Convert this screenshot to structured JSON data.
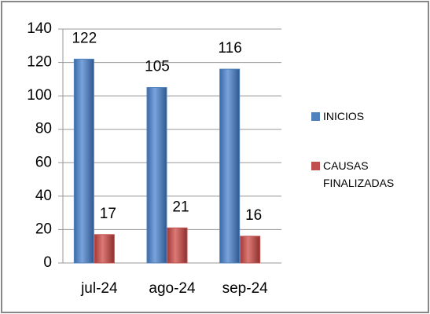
{
  "chart_data": {
    "type": "bar",
    "categories": [
      "jul-24",
      "ago-24",
      "sep-24"
    ],
    "series": [
      {
        "name": "INICIOS",
        "color": "#4f81bd",
        "values": [
          122,
          105,
          116
        ]
      },
      {
        "name": "CAUSAS FINALIZADAS",
        "color": "#c0504d",
        "values": [
          17,
          21,
          16
        ]
      }
    ],
    "ylim": [
      0,
      140
    ],
    "yticks": [
      0,
      20,
      40,
      60,
      80,
      100,
      120,
      140
    ],
    "grid": true,
    "legend": "right",
    "data_labels": true
  }
}
